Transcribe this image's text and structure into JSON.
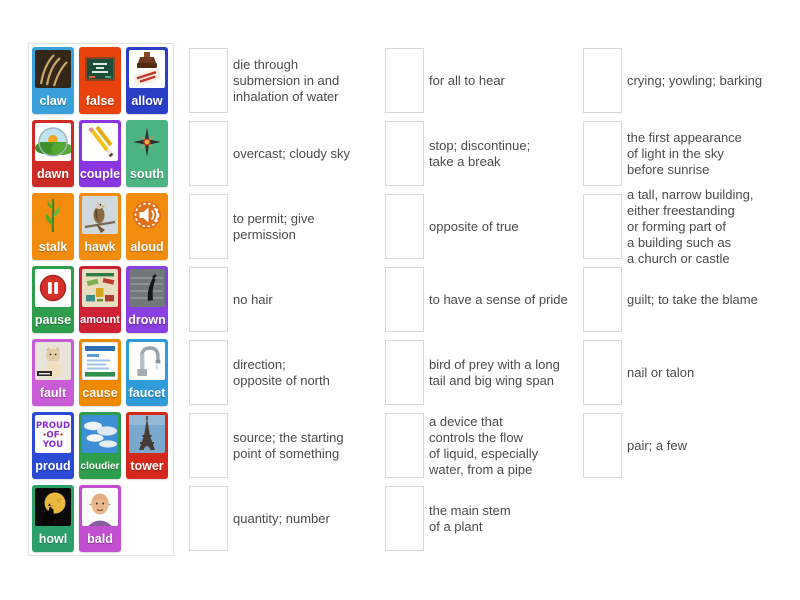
{
  "colors": {
    "page_background": "#ffffff",
    "panel_border": "#e3e3e3",
    "slot_border": "#d8d8d8",
    "definition_text": "#4b4b4b",
    "card_label": "#ffffff"
  },
  "cards": [
    {
      "word": "claw",
      "color": "#3AA0DC",
      "icon": "claw-photo"
    },
    {
      "word": "false",
      "color": "#E8430D",
      "icon": "true-false-chalkboard",
      "image_text": "TRUE OR FALSE?"
    },
    {
      "word": "allow",
      "color": "#2B3FC6",
      "icon": "permission-stamp",
      "image_text": "PERMISSION GRANTED"
    },
    {
      "word": "dawn",
      "color": "#CF2B26",
      "icon": "sunrise-photo"
    },
    {
      "word": "couple",
      "color": "#8B36E0",
      "icon": "pencils-photo"
    },
    {
      "word": "south",
      "color": "#4CB383",
      "icon": "compass-rose"
    },
    {
      "word": "stalk",
      "color": "#F28C0F",
      "icon": "plant-stalk"
    },
    {
      "word": "hawk",
      "color": "#F28C0F",
      "icon": "hawk-photo"
    },
    {
      "word": "aloud",
      "color": "#F28C0F",
      "icon": "read-aloud-badge"
    },
    {
      "word": "pause",
      "color": "#2F9E4C",
      "icon": "pause-button"
    },
    {
      "word": "amount",
      "color": "#CE2135",
      "icon": "money-infographic"
    },
    {
      "word": "drown",
      "color": "#8A3FE0",
      "icon": "drowning-photo"
    },
    {
      "word": "fault",
      "color": "#C95BD6",
      "icon": "kitten-photo"
    },
    {
      "word": "cause",
      "color": "#EF8A00",
      "icon": "cause-infographic"
    },
    {
      "word": "faucet",
      "color": "#2F9BD9",
      "icon": "faucet-photo"
    },
    {
      "word": "proud",
      "color": "#2B4BD6",
      "icon": "proud-of-you-card",
      "image_text": "PROUD OF YOU"
    },
    {
      "word": "cloudier",
      "color": "#2F9E4C",
      "icon": "cloudy-sky-photo"
    },
    {
      "word": "tower",
      "color": "#D5281C",
      "icon": "eiffel-tower-photo"
    },
    {
      "word": "howl",
      "color": "#2BA06A",
      "icon": "wolf-moon-photo"
    },
    {
      "word": "bald",
      "color": "#C24FD0",
      "icon": "bald-man-cartoon"
    }
  ],
  "definition_columns": [
    {
      "items": [
        "die through\nsubmersion in and\ninhalation of water",
        "overcast; cloudy sky",
        "to permit; give\npermission",
        "no hair",
        "direction;\nopposite of north",
        "source; the starting\npoint of something",
        "quantity; number"
      ]
    },
    {
      "items": [
        "for all to hear",
        "stop; discontinue;\ntake a break",
        "opposite of true",
        "to have a sense of pride",
        "bird of prey with a long\ntail and big wing span",
        "a device that\ncontrols the flow\nof liquid, especially\nwater, from a pipe",
        "the main stem\nof a plant"
      ]
    },
    {
      "items": [
        "crying; yowling; barking",
        "the first appearance\nof light in the sky\nbefore sunrise",
        "a tall, narrow building,\neither freestanding\nor forming part of\na building such as\na church or castle",
        "guilt; to take the blame",
        "nail or talon",
        "pair; a few"
      ]
    }
  ]
}
